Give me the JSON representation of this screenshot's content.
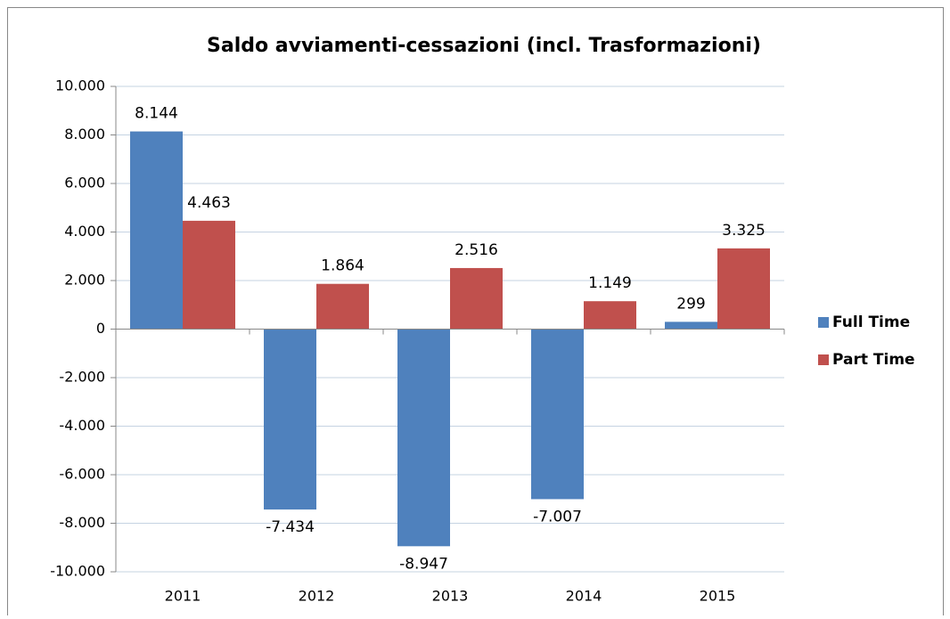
{
  "chart_data": {
    "type": "bar",
    "title": "Saldo avviamenti-cessazioni (incl. Trasformazioni)",
    "categories": [
      "2011",
      "2012",
      "2013",
      "2014",
      "2015"
    ],
    "series": [
      {
        "name": "Full Time",
        "color": "#4f81bd",
        "values": [
          8144,
          -7434,
          -8947,
          -7007,
          299
        ],
        "value_labels": [
          "8.144",
          "-7.434",
          "-8.947",
          "-7.007",
          "299"
        ]
      },
      {
        "name": "Part Time",
        "color": "#c0504d",
        "values": [
          4463,
          1864,
          2516,
          1149,
          3325
        ],
        "value_labels": [
          "4.463",
          "1.864",
          "2.516",
          "1.149",
          "3.325"
        ]
      }
    ],
    "ylim": [
      -10000,
      10000
    ],
    "yticks": [
      {
        "value": -10000,
        "label": "-10.000"
      },
      {
        "value": -8000,
        "label": "-8.000"
      },
      {
        "value": -6000,
        "label": "-6.000"
      },
      {
        "value": -4000,
        "label": "-4.000"
      },
      {
        "value": -2000,
        "label": "-2.000"
      },
      0,
      {
        "value": 2000,
        "label": "2.000"
      },
      {
        "value": 4000,
        "label": "4.000"
      },
      {
        "value": 6000,
        "label": "6.000"
      },
      {
        "value": 8000,
        "label": "8.000"
      },
      {
        "value": 10000,
        "label": "10.000"
      }
    ],
    "grid": true,
    "legend": "right"
  }
}
